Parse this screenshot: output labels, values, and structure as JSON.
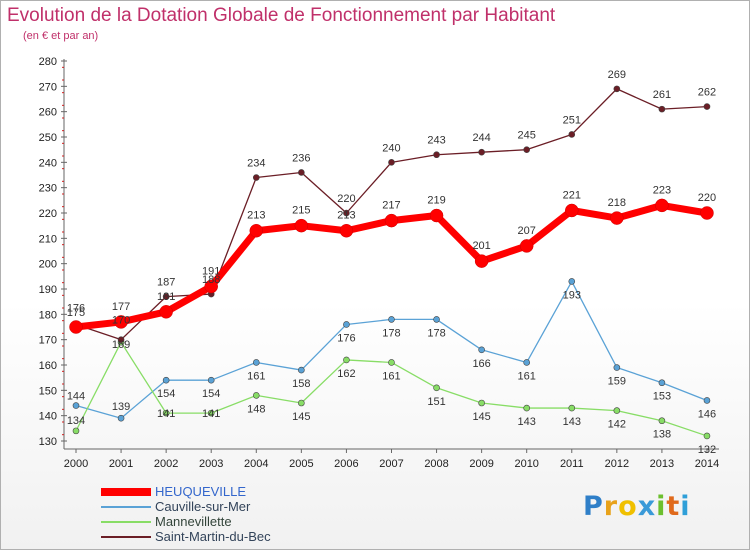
{
  "header": {
    "title": "Evolution de la Dotation Globale de Fonctionnement par Habitant",
    "subtitle": "(en € et par an)"
  },
  "logo": {
    "text": "Proxiti",
    "letters": [
      "P",
      "r",
      "o",
      "x",
      "i",
      "t",
      "i"
    ],
    "colors": [
      "#2f7fc8",
      "#e8a21a",
      "#f0c000",
      "#3a9ad8",
      "#6cbf2e",
      "#e06a1c",
      "#2f9fd8"
    ]
  },
  "chart_data": {
    "type": "line",
    "title": "Evolution de la Dotation Globale de Fonctionnement par Habitant",
    "subtitle": "(en € et par an)",
    "xlabel": "",
    "ylabel": "",
    "ylim": [
      130,
      280
    ],
    "yticks": [
      130,
      140,
      150,
      160,
      170,
      180,
      190,
      200,
      210,
      220,
      230,
      240,
      250,
      260,
      270,
      280
    ],
    "categories": [
      "2000",
      "2001",
      "2002",
      "2003",
      "2004",
      "2005",
      "2006",
      "2007",
      "2008",
      "2009",
      "2010",
      "2011",
      "2012",
      "2013",
      "2014"
    ],
    "grid": false,
    "legend_position": "bottom-left",
    "series": [
      {
        "name": "HEUQUEVILLE",
        "color": "#ff0000",
        "style": "thick",
        "values": [
          175,
          177,
          181,
          191,
          213,
          215,
          213,
          217,
          219,
          201,
          207,
          221,
          218,
          223,
          220
        ]
      },
      {
        "name": "Cauville-sur-Mer",
        "color": "#5aa2d6",
        "style": "thin",
        "values": [
          144,
          139,
          154,
          154,
          161,
          158,
          176,
          178,
          178,
          166,
          161,
          193,
          159,
          153,
          146
        ]
      },
      {
        "name": "Mannevillette",
        "color": "#88dd66",
        "style": "thin",
        "values": [
          134,
          169,
          141,
          141,
          148,
          145,
          162,
          161,
          151,
          145,
          143,
          143,
          142,
          138,
          132
        ]
      },
      {
        "name": "Saint-Martin-du-Bec",
        "color": "#6b1e26",
        "style": "thin",
        "values": [
          176,
          170,
          187,
          188,
          234,
          236,
          220,
          240,
          243,
          244,
          245,
          251,
          269,
          261,
          262
        ]
      }
    ]
  }
}
